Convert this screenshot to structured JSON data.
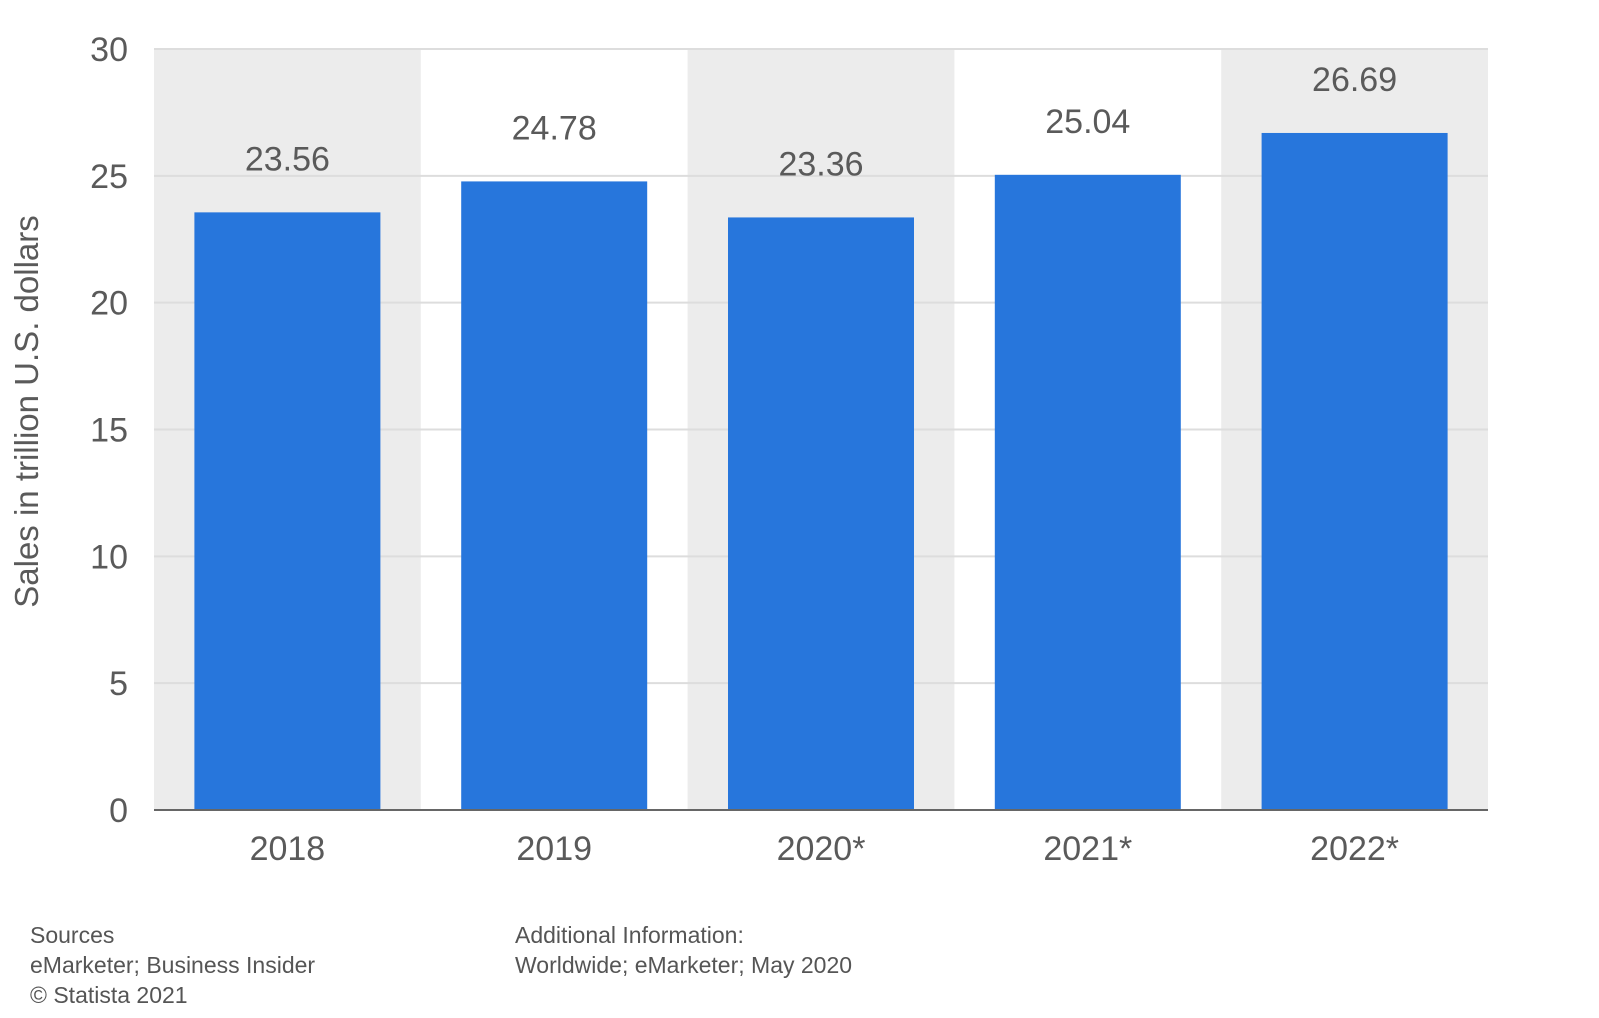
{
  "chart_data": {
    "type": "bar",
    "categories": [
      "2018",
      "2019",
      "2020*",
      "2021*",
      "2022*"
    ],
    "values": [
      23.56,
      24.78,
      23.36,
      25.04,
      26.69
    ],
    "value_labels": [
      "23.56",
      "24.78",
      "23.36",
      "25.04",
      "26.69"
    ],
    "title": "",
    "xlabel": "",
    "ylabel": "Sales in trillion U.S. dollars",
    "ylim": [
      0,
      30
    ],
    "yticks": [
      0,
      5,
      10,
      15,
      20,
      25,
      30
    ],
    "ytick_labels": [
      "0",
      "5",
      "10",
      "15",
      "20",
      "25",
      "30"
    ],
    "grid": true,
    "alternating_column_bands": true
  },
  "colors": {
    "bar": "#2776dc",
    "band": "#ececec",
    "gridline": "#dddddd",
    "axis": "#666666"
  },
  "footer": {
    "sources_heading": "Sources",
    "sources_text": "eMarketer; Business Insider",
    "copyright": "© Statista 2021",
    "info_heading": "Additional Information:",
    "info_text": "Worldwide; eMarketer; May 2020"
  }
}
